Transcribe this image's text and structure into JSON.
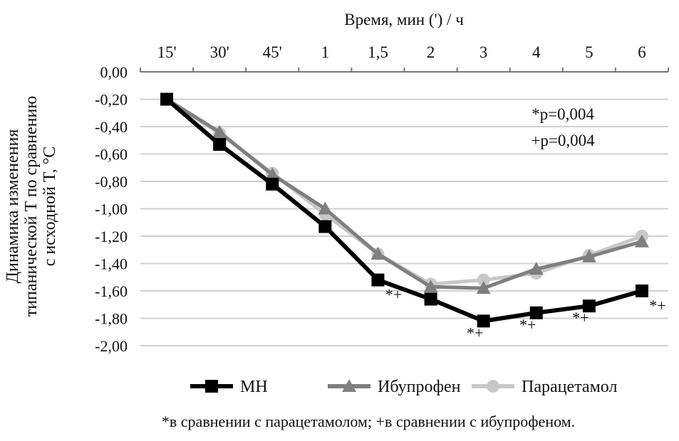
{
  "chart_data": {
    "type": "line",
    "xlabel": "Время, мин (') / ч",
    "ylabel": [
      "Динамика изменения",
      "типанической T по сравнению",
      "с исходной T, °С"
    ],
    "categories": [
      "15'",
      "30'",
      "45'",
      "1",
      "1,5",
      "2",
      "3",
      "4",
      "5",
      "6"
    ],
    "ylim": [
      -2.0,
      0.0
    ],
    "yticks": [
      "0,00",
      "-0,20",
      "-0,40",
      "-0,60",
      "-0,80",
      "-1,00",
      "-1,20",
      "-1,40",
      "-1,60",
      "-1,80",
      "-2,00"
    ],
    "grid": true,
    "x_axis_position": "top",
    "series": [
      {
        "name": "МН",
        "color": "#000000",
        "marker": "square",
        "values": [
          -0.2,
          -0.53,
          -0.82,
          -1.13,
          -1.52,
          -1.66,
          -1.82,
          -1.76,
          -1.71,
          -1.6
        ]
      },
      {
        "name": "Ибупрофен",
        "color": "#7f7f7f",
        "marker": "triangle",
        "values": [
          -0.2,
          -0.44,
          -0.75,
          -1.0,
          -1.33,
          -1.57,
          -1.58,
          -1.44,
          -1.35,
          -1.24
        ]
      },
      {
        "name": "Парацетамол",
        "color": "#c8c8c8",
        "marker": "circle",
        "values": [
          -0.2,
          -0.45,
          -0.74,
          -1.04,
          -1.33,
          -1.55,
          -1.52,
          -1.47,
          -1.34,
          -1.2
        ]
      }
    ],
    "point_annotations": [
      {
        "category": "1,5",
        "text": "*+"
      },
      {
        "category": "3",
        "text": "*+"
      },
      {
        "category": "4",
        "text": "*+"
      },
      {
        "category": "5",
        "text": "*+"
      },
      {
        "category": "6",
        "text": "*+"
      }
    ],
    "stats": [
      "*p=0,004",
      "+p=0,004"
    ],
    "legend_position": "bottom",
    "footnote": "*в сравнении с парацетамолом; +в сравнении с ибупрофеном."
  }
}
